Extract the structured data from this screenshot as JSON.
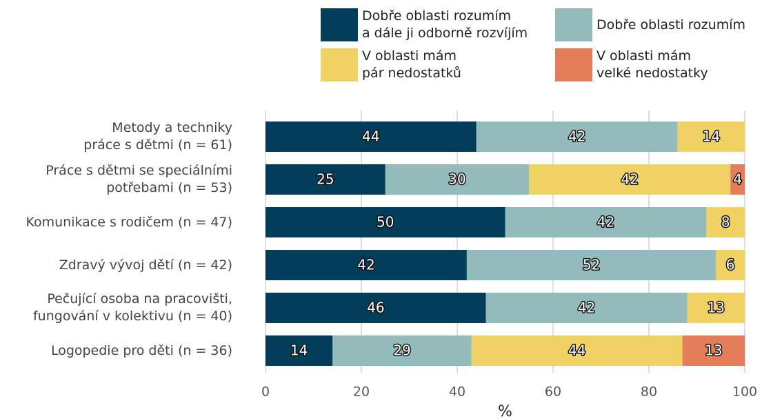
{
  "chart_data": {
    "type": "stacked-bar-horizontal",
    "categories": [
      "Metody a techniky\npráce s dětmi (n = 61)",
      "Práce s dětmi se speciálními\npotřebami (n = 53)",
      "Komunikace s rodičem (n = 47)",
      "Zdravý vývoj dětí (n = 42)",
      "Pečující osoba na pracovišti,\nfungování v kolektivu (n = 40)",
      "Logopedie pro děti (n = 36)"
    ],
    "series": [
      {
        "name": "Dobře oblasti rozumím\na dále ji odborně rozvíjím",
        "color": "#023d5a",
        "values": [
          44,
          25,
          50,
          42,
          46,
          14
        ]
      },
      {
        "name": "Dobře oblasti rozumím",
        "color": "#93bbbb",
        "values": [
          42,
          30,
          42,
          52,
          42,
          29
        ]
      },
      {
        "name": "V oblasti mám\npár nedostatků",
        "color": "#f0d264",
        "values": [
          14,
          42,
          8,
          6,
          13,
          44
        ]
      },
      {
        "name": "V oblasti mám\nvelké nedostatky",
        "color": "#e47d5a",
        "values": [
          null,
          4,
          null,
          null,
          null,
          13
        ]
      }
    ],
    "xlabel": "%",
    "xlim": [
      0,
      100
    ],
    "xticks": [
      0,
      20,
      40,
      60,
      80,
      100
    ],
    "grid": true,
    "legend": "top"
  }
}
